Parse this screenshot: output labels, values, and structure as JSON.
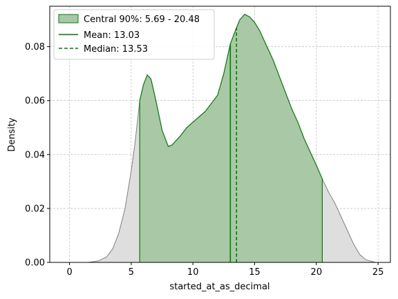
{
  "chart_data": {
    "type": "area",
    "xlabel": "started_at_as_decimal",
    "ylabel": "Density",
    "xlim": [
      -1.6,
      26.0
    ],
    "ylim": [
      0.0,
      0.095
    ],
    "x_ticks": [
      0,
      5,
      10,
      15,
      20,
      25
    ],
    "y_ticks": [
      0.0,
      0.02,
      0.04,
      0.06,
      0.08
    ],
    "y_tick_labels": [
      "0.00",
      "0.02",
      "0.04",
      "0.06",
      "0.08"
    ],
    "grid": true,
    "legend_position": "top-left",
    "central_interval": [
      5.69,
      20.48
    ],
    "mean": 13.03,
    "median": 13.53,
    "series": [
      {
        "x": [
          -0.8,
          0.5,
          1.5,
          2.3,
          3.0,
          3.5,
          4.0,
          4.5,
          5.0,
          5.3,
          5.69,
          6.0,
          6.3,
          6.6,
          7.0,
          7.5,
          8.0,
          8.3,
          9.0,
          9.5,
          10.0,
          10.5,
          11.0,
          11.5,
          12.0,
          12.5,
          13.03,
          13.53,
          13.8,
          14.2,
          14.6,
          15.0,
          15.4,
          16.0,
          16.5,
          17.0,
          17.5,
          18.0,
          18.5,
          19.0,
          19.5,
          20.0,
          20.48,
          21.0,
          21.5,
          22.0,
          22.5,
          23.0,
          23.5,
          24.0,
          24.8
        ],
        "y": [
          0.0,
          0.0,
          0.0,
          0.0005,
          0.002,
          0.005,
          0.011,
          0.02,
          0.034,
          0.044,
          0.06,
          0.066,
          0.0695,
          0.068,
          0.06,
          0.049,
          0.043,
          0.0435,
          0.047,
          0.05,
          0.052,
          0.054,
          0.056,
          0.059,
          0.062,
          0.07,
          0.081,
          0.087,
          0.09,
          0.092,
          0.091,
          0.089,
          0.086,
          0.08,
          0.075,
          0.069,
          0.063,
          0.057,
          0.052,
          0.046,
          0.041,
          0.036,
          0.031,
          0.026,
          0.022,
          0.017,
          0.012,
          0.007,
          0.003,
          0.001,
          0.0
        ]
      }
    ],
    "legend": [
      {
        "label": "Central 90%: 5.69 - 20.48",
        "kind": "patch"
      },
      {
        "label": "Mean: 13.03",
        "kind": "line"
      },
      {
        "label": "Median: 13.53",
        "kind": "dashed-line"
      }
    ],
    "colors": {
      "full_fill": "#dedede",
      "full_edge": "#808080",
      "central_fill": "#a8c8a6",
      "central_edge": "#0a7a0a",
      "mean_line": "#008000",
      "median_line": "#008000",
      "grid": "#b0b0b0"
    }
  }
}
